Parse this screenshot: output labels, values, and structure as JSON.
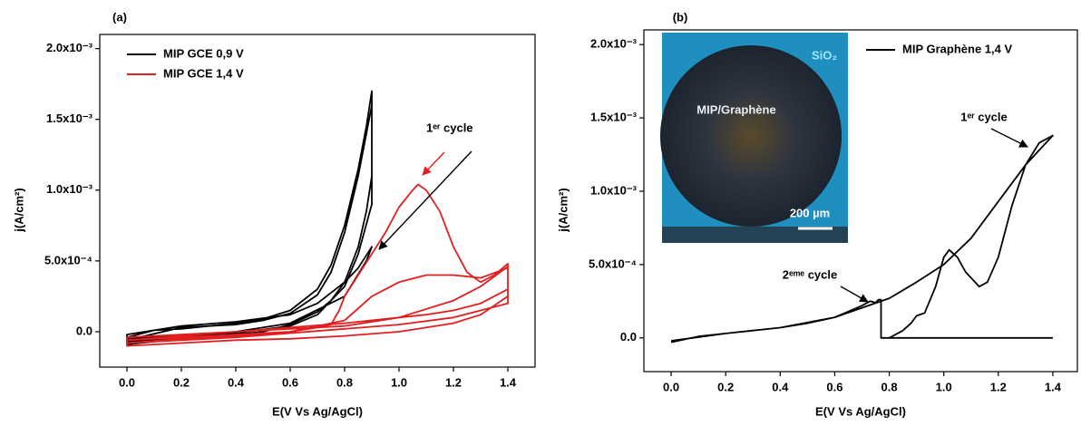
{
  "chart_data": [
    {
      "type": "line",
      "panel_label": "(a)",
      "x_label": "E(V Vs Ag/AgCl)",
      "y_label": "j(A/cm²)",
      "xlim": [
        -0.1,
        1.5
      ],
      "ylim": [
        -0.00025,
        0.0021
      ],
      "xticks": [
        {
          "value": 0,
          "label": "0.0"
        },
        0.2,
        0.4,
        0.6,
        0.8,
        {
          "value": 1,
          "label": "1.0"
        },
        1.2,
        1.4
      ],
      "yticks": [
        {
          "value": 0,
          "label": "0.0"
        },
        {
          "value": 0.0005,
          "label": "5.0x10⁻⁴"
        },
        {
          "value": 0.001,
          "label": "1.0x10⁻³"
        },
        {
          "value": 0.0015,
          "label": "1.5x10⁻³"
        },
        {
          "value": 0.002,
          "label": "2.0x10⁻³"
        }
      ],
      "legend": "upper left",
      "annotations": [
        "1ᵉʳ cycle"
      ],
      "series": [
        {
          "name": "MIP GCE  0,9 V",
          "color": "#000000",
          "x": [
            0,
            0.1,
            0.2,
            0.3,
            0.4,
            0.5,
            0.6,
            0.7,
            0.75,
            0.8,
            0.85,
            0.88,
            0.9,
            0.9,
            0.88,
            0.85,
            0.8,
            0.75,
            0.7,
            0.6,
            0.5,
            0.4,
            0.3,
            0.2,
            0.1,
            0,
            0,
            0.2,
            0.4,
            0.5,
            0.6,
            0.7,
            0.75,
            0.8,
            0.85,
            0.9,
            0.9,
            0.85,
            0.8,
            0.7,
            0.6,
            0.4,
            0.2,
            0,
            0,
            0.2,
            0.4,
            0.6,
            0.7,
            0.8,
            0.85,
            0.9,
            0.88,
            0.8,
            0.6,
            0.4,
            0.2,
            0
          ],
          "values": [
            -4e-05,
            1e-05,
            2e-05,
            4e-05,
            6e-05,
            9e-05,
            0.00015,
            0.0003,
            0.00047,
            0.00075,
            0.00115,
            0.00145,
            0.0017,
            0.0011,
            0.00085,
            0.0006,
            0.00035,
            0.00022,
            0.00014,
            5e-05,
            0,
            -2e-05,
            -3e-05,
            -5e-05,
            -7e-05,
            -9e-05,
            -6e-05,
            3e-05,
            5e-05,
            8e-05,
            0.00013,
            0.00026,
            0.00042,
            0.0007,
            0.0011,
            0.0016,
            0.0009,
            0.00055,
            0.00032,
            0.00012,
            4e-05,
            -1e-05,
            -4e-05,
            -7e-05,
            -2e-05,
            4e-05,
            7e-05,
            0.00012,
            0.0002,
            0.00035,
            0.00045,
            0.0006,
            0.0005,
            0.00025,
            6e-05,
            0,
            -3e-05,
            -5e-05
          ]
        },
        {
          "name": "MIP GCE 1,4 V",
          "color": "#e02020",
          "x": [
            0,
            0.2,
            0.4,
            0.6,
            0.7,
            0.75,
            0.78,
            0.8,
            0.85,
            0.9,
            0.95,
            1.0,
            1.05,
            1.07,
            1.1,
            1.15,
            1.2,
            1.25,
            1.3,
            1.35,
            1.4,
            1.4,
            1.3,
            1.2,
            1.1,
            1.0,
            0.8,
            0.6,
            0.4,
            0.2,
            0,
            0,
            0.2,
            0.4,
            0.6,
            0.8,
            0.9,
            1.0,
            1.1,
            1.2,
            1.3,
            1.4,
            1.4,
            1.3,
            1.2,
            1.0,
            0.8,
            0.6,
            0.4,
            0.2,
            0,
            0,
            0.4,
            0.8,
            1.0,
            1.2,
            1.3,
            1.4,
            1.4,
            1.2,
            1.0,
            0.8,
            0.4,
            0
          ],
          "values": [
            -8e-05,
            -5e-05,
            -3e-05,
            0,
            3e-05,
            5e-05,
            0.00015,
            0.00025,
            0.0004,
            0.00055,
            0.0007,
            0.00088,
            0.001,
            0.00104,
            0.001,
            0.00085,
            0.0006,
            0.00042,
            0.00035,
            0.0004,
            0.00048,
            0.0003,
            0.0002,
            0.00015,
            0.00012,
            0.0001,
            6e-05,
            3e-05,
            0,
            -3e-05,
            -6e-05,
            -6e-05,
            -4e-05,
            -2e-05,
            0,
            8e-05,
            0.00025,
            0.00035,
            0.0004,
            0.0004,
            0.00038,
            0.00045,
            0.00025,
            0.00012,
            6e-05,
            0,
            -3e-05,
            -5e-05,
            -6e-05,
            -8e-05,
            -0.0001,
            -4e-05,
            0,
            4e-05,
            0.0001,
            0.00022,
            0.00032,
            0.00046,
            0.0002,
            0.0001,
            5e-05,
            2e-05,
            -4e-05,
            -8e-05
          ]
        }
      ]
    },
    {
      "type": "line",
      "panel_label": "(b)",
      "x_label": "E(V Vs Ag/AgCl)",
      "y_label": "j(A/cm²)",
      "xlim": [
        -0.1,
        1.49
      ],
      "ylim": [
        -0.00023,
        0.0021
      ],
      "xticks": [
        {
          "value": 0,
          "label": "0.0"
        },
        0.2,
        0.4,
        0.6,
        0.8,
        {
          "value": 1,
          "label": "1.0"
        },
        1.2,
        1.4
      ],
      "yticks": [
        {
          "value": 0,
          "label": "0.0"
        },
        {
          "value": 0.0005,
          "label": "5.0x10⁻⁴"
        },
        {
          "value": 0.001,
          "label": "1.0x10⁻³"
        },
        {
          "value": 0.0015,
          "label": "1.5x10⁻³"
        },
        {
          "value": 0.002,
          "label": "2.0x10⁻³"
        }
      ],
      "legend": "upper right",
      "annotations": [
        "1ᵉʳ cycle",
        "2ᵉᵐᵉ cycle"
      ],
      "inset_labels": [
        "SiO₂",
        "MIP/Graphène",
        "200 µm"
      ],
      "series": [
        {
          "name": "MIP Graphène 1,4 V",
          "color": "#000000",
          "x": [
            0,
            0.1,
            0.2,
            0.3,
            0.4,
            0.5,
            0.6,
            0.65,
            0.7,
            0.73,
            0.75,
            0.76,
            0.77,
            0.77,
            1.0,
            1.4,
            null,
            0.8,
            0.85,
            0.88,
            0.9,
            0.93,
            0.97,
            1.0,
            1.02,
            1.05,
            1.08,
            1.13,
            1.16,
            1.2,
            1.25,
            1.3,
            1.35,
            1.4,
            1.3,
            1.2,
            1.1,
            1.0,
            0.9,
            0.8,
            0.6,
            0.4,
            0.2,
            0
          ],
          "values": [
            -3e-05,
            1e-05,
            3e-05,
            5e-05,
            7e-05,
            0.0001,
            0.00014,
            0.00018,
            0.00022,
            0.00025,
            0.00024,
            0.00026,
            0.00026,
            0,
            0,
            0,
            null,
            0,
            5e-05,
            0.0001,
            0.00015,
            0.00017,
            0.00035,
            0.00055,
            0.0006,
            0.00055,
            0.00045,
            0.00035,
            0.00038,
            0.00055,
            0.0009,
            0.00118,
            0.00133,
            0.00138,
            0.00118,
            0.00093,
            0.00068,
            0.0005,
            0.00038,
            0.00027,
            0.00014,
            7e-05,
            3e-05,
            -2e-05
          ]
        }
      ]
    }
  ]
}
